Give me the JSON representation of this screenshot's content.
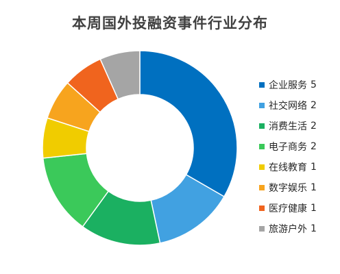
{
  "chart_data": {
    "type": "pie",
    "title": "本周国外投融资事件行业分布",
    "categories": [
      "企业服务",
      "社交网络",
      "消费生活",
      "电子商务",
      "在线教育",
      "数字娱乐",
      "医疗健康",
      "旅游户外"
    ],
    "values": [
      5,
      2,
      2,
      2,
      1,
      1,
      1,
      1
    ],
    "colors": [
      "#0070C0",
      "#41A1E1",
      "#1BB061",
      "#3BC95A",
      "#F0CC00",
      "#F7A41E",
      "#F0641E",
      "#A5A5A5"
    ],
    "donut": true,
    "legend_position": "right"
  }
}
